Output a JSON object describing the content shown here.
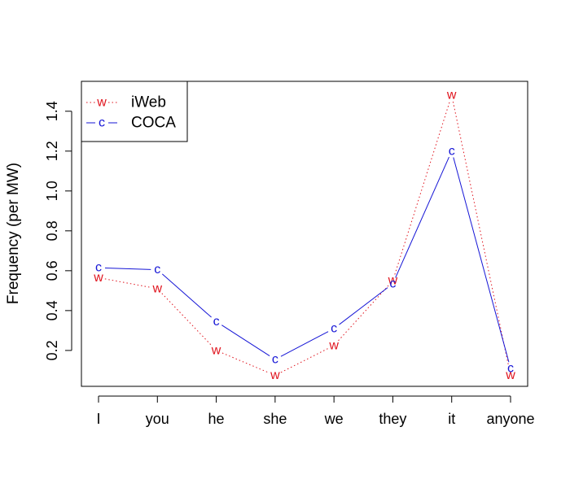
{
  "chart_data": {
    "type": "line",
    "title": "",
    "xlabel": "",
    "ylabel": "Frequency (per MW)",
    "categories": [
      "I",
      "you",
      "he",
      "she",
      "we",
      "they",
      "it",
      "anyone"
    ],
    "ylim": [
      0.02,
      1.55
    ],
    "yticks": [
      "0.2",
      "0.4",
      "0.6",
      "0.8",
      "1.0",
      "1.2",
      "1.4"
    ],
    "grid": false,
    "legend_position": "top-left",
    "series": [
      {
        "name": "iWeb",
        "marker": "w",
        "color": "#e0141e",
        "line_style": "dotted",
        "values": [
          0.565,
          0.51,
          0.2,
          0.075,
          0.225,
          0.55,
          1.48,
          0.075
        ]
      },
      {
        "name": "COCA",
        "marker": "c",
        "color": "#1515d6",
        "line_style": "solid",
        "values": [
          0.615,
          0.605,
          0.345,
          0.155,
          0.31,
          0.535,
          1.2,
          0.11
        ]
      }
    ]
  }
}
